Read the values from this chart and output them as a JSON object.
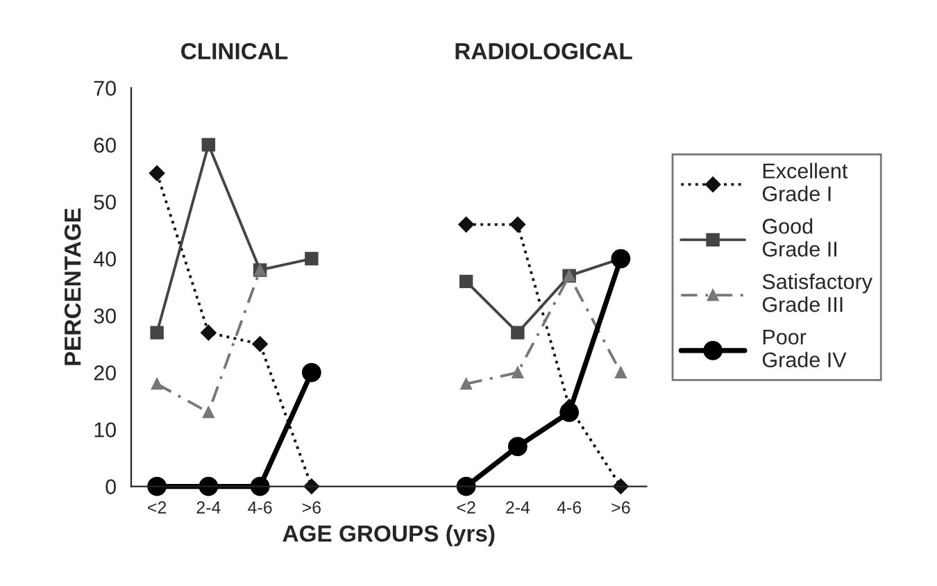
{
  "chart_data": {
    "type": "line",
    "xlabel": "AGE GROUPS (yrs)",
    "ylabel": "PERCENTAGE",
    "annotations": [
      "CLINICAL",
      "RADIOLOGICAL"
    ],
    "categories": [
      "<2",
      "2-4",
      "4-6",
      ">6",
      null,
      null,
      "<2",
      "2-4",
      "4-6",
      ">6"
    ],
    "ylim": [
      0,
      70
    ],
    "yticks": [
      0,
      10,
      20,
      30,
      40,
      50,
      60,
      70
    ],
    "grid": false,
    "legend": "right",
    "series": [
      {
        "name": "Excellent\nGrade I",
        "color": "#111111",
        "marker": "diamond",
        "line_style": "dotted",
        "values": [
          55,
          27,
          25,
          0,
          null,
          null,
          46,
          46,
          14,
          0
        ]
      },
      {
        "name": "Good\nGrade II",
        "color": "#444444",
        "marker": "square",
        "line_style": "solid",
        "values": [
          27,
          60,
          38,
          40,
          null,
          null,
          36,
          27,
          37,
          40
        ]
      },
      {
        "name": "Satisfactory\nGrade III",
        "color": "#777777",
        "marker": "triangle",
        "line_style": "dashed",
        "values": [
          18,
          13,
          38,
          null,
          null,
          null,
          18,
          20,
          37,
          20
        ]
      },
      {
        "name": "Poor\nGrade IV",
        "color": "#000000",
        "marker": "circle",
        "line_style": "solid",
        "values": [
          0,
          0,
          0,
          20,
          null,
          null,
          0,
          7,
          13,
          40
        ]
      }
    ]
  }
}
